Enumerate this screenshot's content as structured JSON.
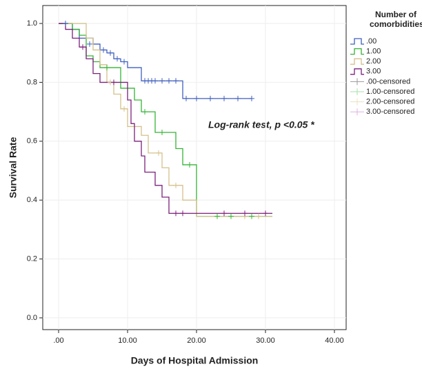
{
  "chart_data": {
    "type": "line",
    "x_label": "Days of Hospital Admission",
    "y_label": "Survival Rate",
    "annotation": "Log-rank test, p <0.05 *",
    "legend_title": "Number of comorbidities",
    "xlim": [
      -2.3,
      41.7
    ],
    "ylim": [
      -0.04,
      1.061
    ],
    "xticks": [
      {
        "value": 0,
        "label": ".00"
      },
      {
        "value": 10,
        "label": "10.00"
      },
      {
        "value": 20,
        "label": "20.00"
      },
      {
        "value": 30,
        "label": "30.00"
      },
      {
        "value": 40,
        "label": "40.00"
      }
    ],
    "yticks": [
      {
        "value": 0,
        "label": "0.0"
      },
      {
        "value": 0.2,
        "label": "0.2"
      },
      {
        "value": 0.4,
        "label": "0.4"
      },
      {
        "value": 0.6,
        "label": "0.6"
      },
      {
        "value": 0.8,
        "label": "0.8"
      },
      {
        "value": 1,
        "label": "1.0"
      }
    ],
    "grid": true,
    "series": [
      {
        "name": ".00",
        "color": "#3f5fbf",
        "style": "step",
        "x": [
          0,
          2,
          3,
          5,
          6,
          7,
          8,
          9,
          10,
          12,
          18,
          28
        ],
        "values": [
          1.0,
          0.98,
          0.95,
          0.93,
          0.91,
          0.9,
          0.88,
          0.87,
          0.85,
          0.805,
          0.745,
          0.745
        ]
      },
      {
        "name": "1.00",
        "color": "#33b333",
        "style": "step",
        "x": [
          0,
          2,
          3,
          4,
          5,
          6,
          9,
          11,
          12,
          14,
          17,
          18,
          20,
          31
        ],
        "values": [
          1.0,
          0.98,
          0.96,
          0.89,
          0.87,
          0.85,
          0.78,
          0.74,
          0.7,
          0.63,
          0.575,
          0.52,
          0.345,
          0.345
        ]
      },
      {
        "name": "2.00",
        "color": "#d4c08a",
        "style": "step",
        "x": [
          0,
          4,
          5,
          6,
          7,
          8,
          9,
          10,
          12,
          13,
          15,
          16,
          18,
          20,
          31
        ],
        "values": [
          1.0,
          0.95,
          0.91,
          0.86,
          0.8,
          0.76,
          0.71,
          0.65,
          0.62,
          0.56,
          0.51,
          0.45,
          0.4,
          0.345,
          0.345
        ]
      },
      {
        "name": "3.00",
        "color": "#7b1f7b",
        "style": "step",
        "x": [
          0,
          1,
          2,
          3,
          4,
          5,
          6,
          10,
          10.5,
          11,
          12,
          12.5,
          14,
          15,
          16,
          31
        ],
        "values": [
          1.0,
          0.98,
          0.95,
          0.92,
          0.88,
          0.83,
          0.8,
          0.74,
          0.66,
          0.6,
          0.55,
          0.495,
          0.45,
          0.41,
          0.355,
          0.355
        ]
      },
      {
        "name": ".00-censored",
        "color": "#3f5fbf",
        "legend_color": "#999999",
        "style": "plus",
        "x": [
          1,
          4.5,
          6.5,
          7.5,
          8.5,
          9.5,
          12.5,
          13,
          13.5,
          14,
          15,
          16,
          17,
          18.5,
          20,
          22,
          24,
          26,
          28
        ],
        "values": [
          1.0,
          0.93,
          0.91,
          0.9,
          0.88,
          0.87,
          0.805,
          0.805,
          0.805,
          0.805,
          0.805,
          0.805,
          0.805,
          0.745,
          0.745,
          0.745,
          0.745,
          0.745,
          0.745
        ]
      },
      {
        "name": "1.00-censored",
        "color": "#33b333",
        "legend_color": "#a6e0a6",
        "style": "plus",
        "x": [
          7,
          12.5,
          15,
          19,
          23,
          25,
          28
        ],
        "values": [
          0.85,
          0.7,
          0.63,
          0.52,
          0.345,
          0.345,
          0.345
        ]
      },
      {
        "name": "2.00-censored",
        "color": "#d4c08a",
        "legend_color": "#ece0c0",
        "style": "plus",
        "x": [
          7.5,
          9.5,
          14.5,
          17,
          27,
          29
        ],
        "values": [
          0.8,
          0.71,
          0.56,
          0.45,
          0.345,
          0.345
        ]
      },
      {
        "name": "3.00-censored",
        "color": "#7b1f7b",
        "legend_color": "#e0b0e0",
        "style": "plus",
        "x": [
          3.5,
          8,
          17,
          18,
          24,
          27,
          30
        ],
        "values": [
          0.92,
          0.8,
          0.355,
          0.355,
          0.355,
          0.355,
          0.355
        ]
      }
    ]
  }
}
